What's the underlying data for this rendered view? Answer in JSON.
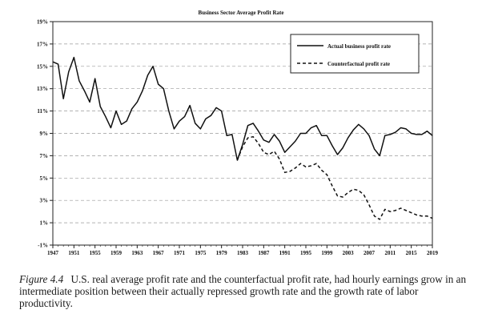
{
  "chart_data": {
    "type": "line",
    "title": "Business Sector Average Profit Rate",
    "xlabel": "",
    "ylabel": "",
    "xlim": [
      1947,
      2019
    ],
    "ylim": [
      -1,
      19
    ],
    "x_ticks": [
      "1947",
      "1951",
      "1955",
      "1959",
      "1963",
      "1967",
      "1971",
      "1975",
      "1979",
      "1983",
      "1987",
      "1991",
      "1995",
      "1999",
      "2003",
      "2007",
      "2011",
      "2015",
      "2019"
    ],
    "y_ticks": [
      "-1%",
      "1%",
      "3%",
      "5%",
      "7%",
      "9%",
      "11%",
      "13%",
      "15%",
      "17%",
      "19%"
    ],
    "grid": "horizontal dashed",
    "legend_position": "top-right",
    "series": [
      {
        "name": "Actual business profit rate",
        "style": "solid",
        "color": "#111111",
        "points": [
          [
            1947,
            15.4
          ],
          [
            1948,
            15.2
          ],
          [
            1949,
            12.1
          ],
          [
            1950,
            14.5
          ],
          [
            1951,
            15.8
          ],
          [
            1952,
            13.7
          ],
          [
            1953,
            12.8
          ],
          [
            1954,
            11.8
          ],
          [
            1955,
            13.9
          ],
          [
            1956,
            11.4
          ],
          [
            1957,
            10.5
          ],
          [
            1958,
            9.5
          ],
          [
            1959,
            11.0
          ],
          [
            1960,
            9.8
          ],
          [
            1961,
            10.1
          ],
          [
            1962,
            11.2
          ],
          [
            1963,
            11.8
          ],
          [
            1964,
            12.8
          ],
          [
            1965,
            14.2
          ],
          [
            1966,
            15.0
          ],
          [
            1967,
            13.4
          ],
          [
            1968,
            13.0
          ],
          [
            1969,
            11.0
          ],
          [
            1970,
            9.4
          ],
          [
            1971,
            10.1
          ],
          [
            1972,
            10.5
          ],
          [
            1973,
            11.5
          ],
          [
            1974,
            9.9
          ],
          [
            1975,
            9.4
          ],
          [
            1976,
            10.3
          ],
          [
            1977,
            10.6
          ],
          [
            1978,
            11.3
          ],
          [
            1979,
            11.0
          ],
          [
            1980,
            8.8
          ],
          [
            1981,
            8.9
          ],
          [
            1982,
            6.6
          ],
          [
            1983,
            8.0
          ],
          [
            1984,
            9.7
          ],
          [
            1985,
            9.9
          ],
          [
            1986,
            9.2
          ],
          [
            1987,
            8.4
          ],
          [
            1988,
            8.2
          ],
          [
            1989,
            8.9
          ],
          [
            1990,
            8.3
          ],
          [
            1991,
            7.3
          ],
          [
            1992,
            7.8
          ],
          [
            1993,
            8.3
          ],
          [
            1994,
            9.0
          ],
          [
            1995,
            9.0
          ],
          [
            1996,
            9.5
          ],
          [
            1997,
            9.7
          ],
          [
            1998,
            8.8
          ],
          [
            1999,
            8.8
          ],
          [
            2000,
            7.9
          ],
          [
            2001,
            7.1
          ],
          [
            2002,
            7.7
          ],
          [
            2003,
            8.6
          ],
          [
            2004,
            9.3
          ],
          [
            2005,
            9.8
          ],
          [
            2006,
            9.4
          ],
          [
            2007,
            8.8
          ],
          [
            2008,
            7.6
          ],
          [
            2009,
            7.0
          ],
          [
            2010,
            8.8
          ],
          [
            2011,
            8.9
          ],
          [
            2012,
            9.1
          ],
          [
            2013,
            9.5
          ],
          [
            2014,
            9.4
          ],
          [
            2015,
            9.0
          ],
          [
            2016,
            8.9
          ],
          [
            2017,
            8.9
          ],
          [
            2018,
            9.2
          ],
          [
            2019,
            8.8
          ]
        ]
      },
      {
        "name": "Counterfactual profit rate",
        "style": "dashed",
        "color": "#111111",
        "points": [
          [
            1982,
            6.6
          ],
          [
            1983,
            7.8
          ],
          [
            1984,
            8.6
          ],
          [
            1985,
            8.7
          ],
          [
            1986,
            8.1
          ],
          [
            1987,
            7.3
          ],
          [
            1988,
            7.1
          ],
          [
            1989,
            7.4
          ],
          [
            1990,
            6.7
          ],
          [
            1991,
            5.5
          ],
          [
            1992,
            5.6
          ],
          [
            1993,
            5.9
          ],
          [
            1994,
            6.3
          ],
          [
            1995,
            6.0
          ],
          [
            1996,
            6.1
          ],
          [
            1997,
            6.3
          ],
          [
            1998,
            5.7
          ],
          [
            1999,
            5.3
          ],
          [
            2000,
            4.3
          ],
          [
            2001,
            3.4
          ],
          [
            2002,
            3.3
          ],
          [
            2003,
            3.7
          ],
          [
            2004,
            4.0
          ],
          [
            2005,
            3.9
          ],
          [
            2006,
            3.5
          ],
          [
            2007,
            2.6
          ],
          [
            2008,
            1.6
          ],
          [
            2009,
            1.3
          ],
          [
            2010,
            2.2
          ],
          [
            2011,
            2.0
          ],
          [
            2012,
            2.1
          ],
          [
            2013,
            2.3
          ],
          [
            2014,
            2.1
          ],
          [
            2015,
            1.9
          ],
          [
            2016,
            1.7
          ],
          [
            2017,
            1.6
          ],
          [
            2018,
            1.6
          ],
          [
            2019,
            1.4
          ]
        ]
      }
    ]
  },
  "caption": {
    "figure_number": "Figure 4.4",
    "text": "U.S. real average profit rate and the counterfactual profit rate, had hourly earnings grow in an intermediate position between their actually repressed growth rate and the growth rate of labor productivity."
  }
}
